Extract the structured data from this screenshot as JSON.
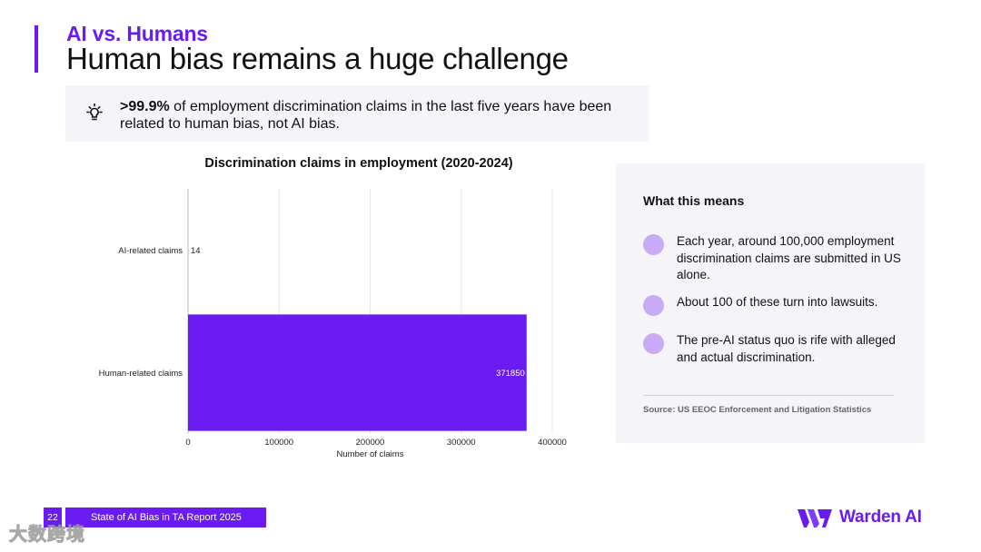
{
  "header": {
    "kicker": "AI vs. Humans",
    "title": "Human bias remains a huge challenge"
  },
  "callout": {
    "icon": "lightbulb-icon",
    "highlight": ">99.9%",
    "text": " of employment discrimination claims in the last five years have been related to human bias, not AI bias."
  },
  "chart_data": {
    "type": "bar",
    "orientation": "horizontal",
    "title": "Discrimination claims in employment (2020-2024)",
    "xlabel": "Number of claims",
    "ylabel": "",
    "categories": [
      "AI-related claims",
      "Human-related claims"
    ],
    "values": [
      14,
      371850
    ],
    "data_labels": [
      "14",
      "371850"
    ],
    "xlim": [
      0,
      400000
    ],
    "xticks": [
      0,
      100000,
      200000,
      300000,
      400000
    ],
    "xtick_labels": [
      "0",
      "100000",
      "200000",
      "300000",
      "400000"
    ],
    "grid": "vertical",
    "bar_color": "#6a1bf2"
  },
  "panel": {
    "heading": "What this means",
    "items": [
      "Each year, around 100,000 employment discrimination claims are submitted in US alone.",
      "About 100 of these turn into lawsuits.",
      "The pre-AI status quo is rife with alleged and actual discrimination."
    ],
    "source": "Source: US EEOC Enforcement and Litigation Statistics"
  },
  "footer": {
    "page_number": "22",
    "report_name": "State of AI Bias in TA Report 2025",
    "brand_name": "Warden AI",
    "brand_icon": "warden-logo-icon",
    "watermark": "大数跨境"
  },
  "colors": {
    "accent": "#6a1bf2",
    "panel_bg": "#f5f4f8",
    "bullet": "#c9aaf6"
  }
}
